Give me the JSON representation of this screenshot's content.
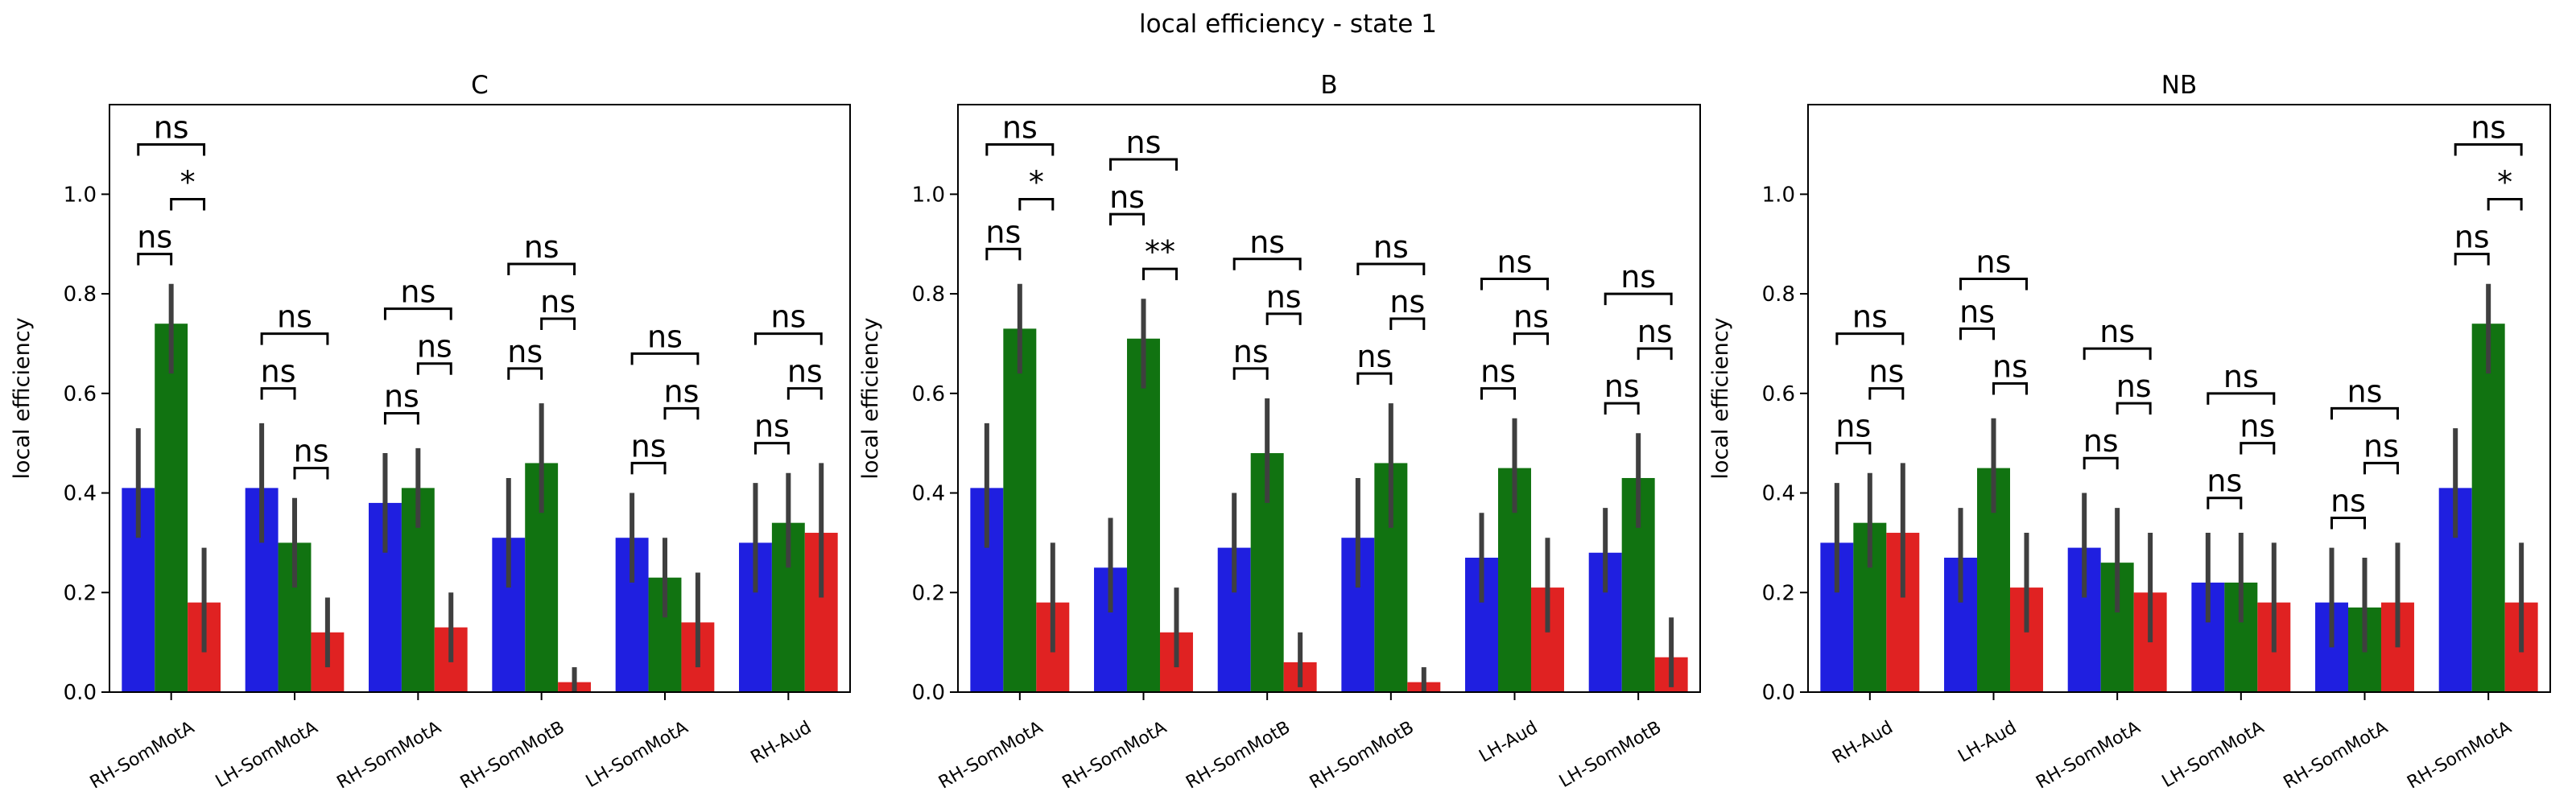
{
  "figure": {
    "suptitle": "local efficiency - state 1",
    "colors": [
      "#1f1fe0",
      "#117311",
      "#e02222"
    ]
  },
  "chart_data": [
    {
      "type": "bar",
      "title": "C",
      "ylabel": "local efficiency",
      "xlabel": "",
      "ylim": [
        0,
        1.18
      ],
      "yticks": [
        "0.0",
        "0.2",
        "0.4",
        "0.6",
        "0.8",
        "1.0"
      ],
      "categories": [
        "RH-SomMotA",
        "LH-SomMotA",
        "RH-SomMotA",
        "RH-SomMotB",
        "LH-SomMotA",
        "RH-Aud"
      ],
      "series": [
        {
          "values": [
            0.41,
            0.41,
            0.38,
            0.31,
            0.31,
            0.3
          ],
          "err_low": [
            0.31,
            0.3,
            0.28,
            0.21,
            0.22,
            0.2
          ],
          "err_high": [
            0.53,
            0.54,
            0.48,
            0.43,
            0.4,
            0.42
          ]
        },
        {
          "values": [
            0.74,
            0.3,
            0.41,
            0.46,
            0.23,
            0.34
          ],
          "err_low": [
            0.64,
            0.21,
            0.33,
            0.36,
            0.15,
            0.25
          ],
          "err_high": [
            0.82,
            0.39,
            0.49,
            0.58,
            0.31,
            0.44
          ]
        },
        {
          "values": [
            0.18,
            0.12,
            0.13,
            0.02,
            0.14,
            0.32
          ],
          "err_low": [
            0.08,
            0.05,
            0.06,
            0.0,
            0.05,
            0.19
          ],
          "err_high": [
            0.29,
            0.19,
            0.2,
            0.05,
            0.24,
            0.46
          ]
        }
      ],
      "annotations": [
        [
          {
            "pair": [
              0,
              1
            ],
            "label": "ns",
            "y": 0.88
          },
          {
            "pair": [
              1,
              2
            ],
            "label": "*",
            "y": 0.99
          },
          {
            "pair": [
              0,
              2
            ],
            "label": "ns",
            "y": 1.1
          }
        ],
        [
          {
            "pair": [
              0,
              1
            ],
            "label": "ns",
            "y": 0.61
          },
          {
            "pair": [
              1,
              2
            ],
            "label": "ns",
            "y": 0.45
          },
          {
            "pair": [
              0,
              2
            ],
            "label": "ns",
            "y": 0.72
          }
        ],
        [
          {
            "pair": [
              0,
              1
            ],
            "label": "ns",
            "y": 0.56
          },
          {
            "pair": [
              1,
              2
            ],
            "label": "ns",
            "y": 0.66
          },
          {
            "pair": [
              0,
              2
            ],
            "label": "ns",
            "y": 0.77
          }
        ],
        [
          {
            "pair": [
              0,
              1
            ],
            "label": "ns",
            "y": 0.65
          },
          {
            "pair": [
              1,
              2
            ],
            "label": "ns",
            "y": 0.75
          },
          {
            "pair": [
              0,
              2
            ],
            "label": "ns",
            "y": 0.86
          }
        ],
        [
          {
            "pair": [
              0,
              1
            ],
            "label": "ns",
            "y": 0.46
          },
          {
            "pair": [
              1,
              2
            ],
            "label": "ns",
            "y": 0.57
          },
          {
            "pair": [
              0,
              2
            ],
            "label": "ns",
            "y": 0.68
          }
        ],
        [
          {
            "pair": [
              0,
              1
            ],
            "label": "ns",
            "y": 0.5
          },
          {
            "pair": [
              1,
              2
            ],
            "label": "ns",
            "y": 0.61
          },
          {
            "pair": [
              0,
              2
            ],
            "label": "ns",
            "y": 0.72
          }
        ]
      ]
    },
    {
      "type": "bar",
      "title": "B",
      "ylabel": "local efficiency",
      "xlabel": "",
      "ylim": [
        0,
        1.18
      ],
      "yticks": [
        "0.0",
        "0.2",
        "0.4",
        "0.6",
        "0.8",
        "1.0"
      ],
      "categories": [
        "RH-SomMotA",
        "RH-SomMotA",
        "RH-SomMotB",
        "RH-SomMotB",
        "LH-Aud",
        "LH-SomMotB"
      ],
      "series": [
        {
          "values": [
            0.41,
            0.25,
            0.29,
            0.31,
            0.27,
            0.28
          ],
          "err_low": [
            0.29,
            0.16,
            0.2,
            0.21,
            0.18,
            0.2
          ],
          "err_high": [
            0.54,
            0.35,
            0.4,
            0.43,
            0.36,
            0.37
          ]
        },
        {
          "values": [
            0.73,
            0.71,
            0.48,
            0.46,
            0.45,
            0.43
          ],
          "err_low": [
            0.64,
            0.61,
            0.38,
            0.33,
            0.36,
            0.33
          ],
          "err_high": [
            0.82,
            0.79,
            0.59,
            0.58,
            0.55,
            0.52
          ]
        },
        {
          "values": [
            0.18,
            0.12,
            0.06,
            0.02,
            0.21,
            0.07
          ],
          "err_low": [
            0.08,
            0.05,
            0.01,
            0.0,
            0.12,
            0.01
          ],
          "err_high": [
            0.3,
            0.21,
            0.12,
            0.05,
            0.31,
            0.15
          ]
        }
      ],
      "annotations": [
        [
          {
            "pair": [
              0,
              1
            ],
            "label": "ns",
            "y": 0.89
          },
          {
            "pair": [
              1,
              2
            ],
            "label": "*",
            "y": 0.99
          },
          {
            "pair": [
              0,
              2
            ],
            "label": "ns",
            "y": 1.1
          }
        ],
        [
          {
            "pair": [
              0,
              1
            ],
            "label": "ns",
            "y": 0.96
          },
          {
            "pair": [
              1,
              2
            ],
            "label": "**",
            "y": 0.85
          },
          {
            "pair": [
              0,
              2
            ],
            "label": "ns",
            "y": 1.07
          }
        ],
        [
          {
            "pair": [
              0,
              1
            ],
            "label": "ns",
            "y": 0.65
          },
          {
            "pair": [
              1,
              2
            ],
            "label": "ns",
            "y": 0.76
          },
          {
            "pair": [
              0,
              2
            ],
            "label": "ns",
            "y": 0.87
          }
        ],
        [
          {
            "pair": [
              0,
              1
            ],
            "label": "ns",
            "y": 0.64
          },
          {
            "pair": [
              1,
              2
            ],
            "label": "ns",
            "y": 0.75
          },
          {
            "pair": [
              0,
              2
            ],
            "label": "ns",
            "y": 0.86
          }
        ],
        [
          {
            "pair": [
              0,
              1
            ],
            "label": "ns",
            "y": 0.61
          },
          {
            "pair": [
              1,
              2
            ],
            "label": "ns",
            "y": 0.72
          },
          {
            "pair": [
              0,
              2
            ],
            "label": "ns",
            "y": 0.83
          }
        ],
        [
          {
            "pair": [
              0,
              1
            ],
            "label": "ns",
            "y": 0.58
          },
          {
            "pair": [
              1,
              2
            ],
            "label": "ns",
            "y": 0.69
          },
          {
            "pair": [
              0,
              2
            ],
            "label": "ns",
            "y": 0.8
          }
        ]
      ]
    },
    {
      "type": "bar",
      "title": "NB",
      "ylabel": "local efficiency",
      "xlabel": "",
      "ylim": [
        0,
        1.18
      ],
      "yticks": [
        "0.0",
        "0.2",
        "0.4",
        "0.6",
        "0.8",
        "1.0"
      ],
      "categories": [
        "RH-Aud",
        "LH-Aud",
        "RH-SomMotA",
        "LH-SomMotA",
        "RH-SomMotA",
        "RH-SomMotA"
      ],
      "series": [
        {
          "values": [
            0.3,
            0.27,
            0.29,
            0.22,
            0.18,
            0.41
          ],
          "err_low": [
            0.2,
            0.18,
            0.19,
            0.14,
            0.09,
            0.31
          ],
          "err_high": [
            0.42,
            0.37,
            0.4,
            0.32,
            0.29,
            0.53
          ]
        },
        {
          "values": [
            0.34,
            0.45,
            0.26,
            0.22,
            0.17,
            0.74
          ],
          "err_low": [
            0.25,
            0.36,
            0.16,
            0.14,
            0.08,
            0.64
          ],
          "err_high": [
            0.44,
            0.55,
            0.37,
            0.32,
            0.27,
            0.82
          ]
        },
        {
          "values": [
            0.32,
            0.21,
            0.2,
            0.18,
            0.18,
            0.18
          ],
          "err_low": [
            0.19,
            0.12,
            0.1,
            0.08,
            0.09,
            0.08
          ],
          "err_high": [
            0.46,
            0.32,
            0.32,
            0.3,
            0.3,
            0.3
          ]
        }
      ],
      "annotations": [
        [
          {
            "pair": [
              0,
              1
            ],
            "label": "ns",
            "y": 0.5
          },
          {
            "pair": [
              1,
              2
            ],
            "label": "ns",
            "y": 0.61
          },
          {
            "pair": [
              0,
              2
            ],
            "label": "ns",
            "y": 0.72
          }
        ],
        [
          {
            "pair": [
              0,
              1
            ],
            "label": "ns",
            "y": 0.73
          },
          {
            "pair": [
              1,
              2
            ],
            "label": "ns",
            "y": 0.62
          },
          {
            "pair": [
              0,
              2
            ],
            "label": "ns",
            "y": 0.83
          }
        ],
        [
          {
            "pair": [
              0,
              1
            ],
            "label": "ns",
            "y": 0.47
          },
          {
            "pair": [
              1,
              2
            ],
            "label": "ns",
            "y": 0.58
          },
          {
            "pair": [
              0,
              2
            ],
            "label": "ns",
            "y": 0.69
          }
        ],
        [
          {
            "pair": [
              0,
              1
            ],
            "label": "ns",
            "y": 0.39
          },
          {
            "pair": [
              1,
              2
            ],
            "label": "ns",
            "y": 0.5
          },
          {
            "pair": [
              0,
              2
            ],
            "label": "ns",
            "y": 0.6
          }
        ],
        [
          {
            "pair": [
              0,
              1
            ],
            "label": "ns",
            "y": 0.35
          },
          {
            "pair": [
              1,
              2
            ],
            "label": "ns",
            "y": 0.46
          },
          {
            "pair": [
              0,
              2
            ],
            "label": "ns",
            "y": 0.57
          }
        ],
        [
          {
            "pair": [
              0,
              1
            ],
            "label": "ns",
            "y": 0.88
          },
          {
            "pair": [
              1,
              2
            ],
            "label": "*",
            "y": 0.99
          },
          {
            "pair": [
              0,
              2
            ],
            "label": "ns",
            "y": 1.1
          }
        ]
      ]
    }
  ]
}
